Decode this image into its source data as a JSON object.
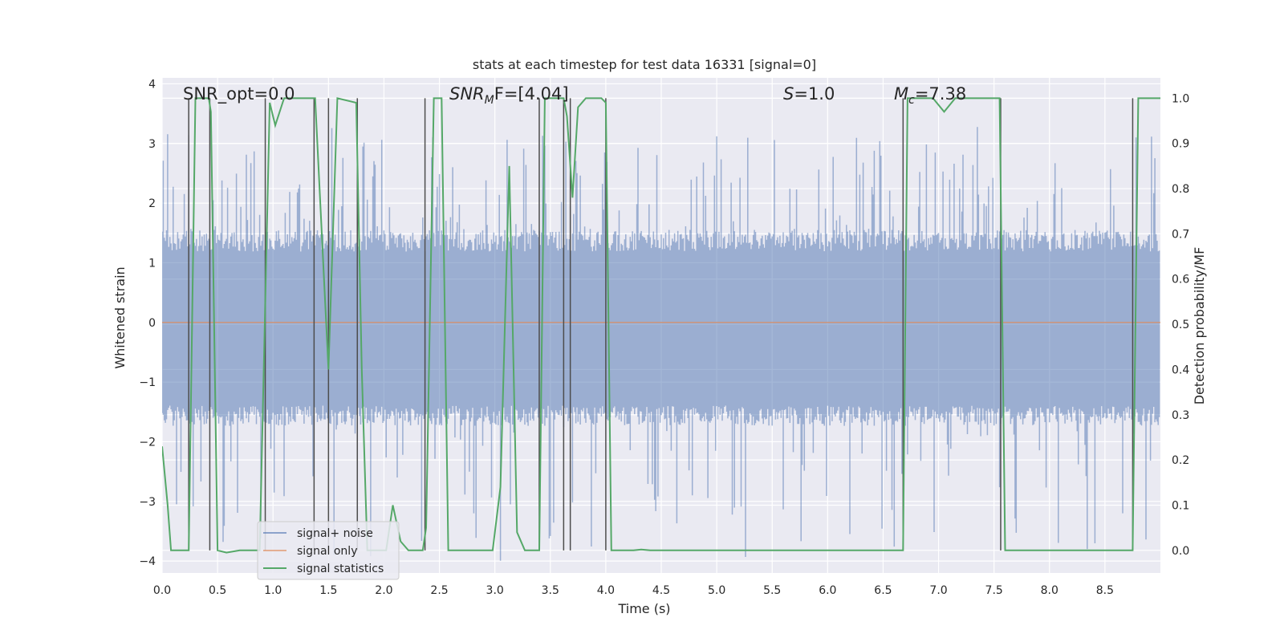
{
  "chart_data": {
    "type": "line",
    "title": "stats at each timestep for test data 16331 [signal=0]",
    "xlabel": "Time (s)",
    "ylabel": "Whitened strain",
    "ylabel_right": "Detection probability/MF",
    "xlim": [
      0,
      9
    ],
    "ylim": [
      -4.2,
      4.1
    ],
    "ylim_right": [
      -0.05,
      1.045
    ],
    "x_ticks": [
      "0.0",
      "0.5",
      "1.0",
      "1.5",
      "2.0",
      "2.5",
      "3.0",
      "3.5",
      "4.0",
      "4.5",
      "5.0",
      "5.5",
      "6.0",
      "6.5",
      "7.0",
      "7.5",
      "8.0",
      "8.5"
    ],
    "y_ticks": [
      "4",
      "3",
      "2",
      "1",
      "0",
      "−1",
      "−2",
      "−3",
      "−4"
    ],
    "y_right_ticks": [
      "1.0",
      "0.9",
      "0.8",
      "0.7",
      "0.6",
      "0.5",
      "0.4",
      "0.3",
      "0.2",
      "0.1",
      "0.0"
    ],
    "annotations": {
      "snr_opt": "SNR_opt=0.0",
      "snr_mf_prefix": "SNR",
      "snr_mf_sub": "M",
      "snr_mf_value": "F=[4.04]",
      "s_label": "S",
      "s_value": "=1.0",
      "mc_label": "M",
      "mc_sub": "c",
      "mc_value": "=7.38"
    },
    "legend": [
      "signal+ noise",
      "signal only",
      "signal statistics"
    ],
    "colors": {
      "noise": "#4c72b0",
      "signal": "#dd8452",
      "stats": "#55a868",
      "vlines": "#4d4d4d",
      "background": "#eaeaf2",
      "grid": "#ffffff"
    },
    "series": [
      {
        "name": "signal+ noise",
        "description_range": "dense noise fill, mostly within -1.7..1.5, spikes up to 3.3 and down to -4.0",
        "values_summary": {
          "typical_low": -1.7,
          "typical_high": 1.45,
          "max": 3.3,
          "min": -4.0
        }
      },
      {
        "name": "signal only",
        "values": [
          [
            0,
            0
          ],
          [
            9,
            0
          ]
        ]
      },
      {
        "name": "signal statistics",
        "points": [
          [
            0.0,
            0.23
          ],
          [
            0.05,
            0.1
          ],
          [
            0.08,
            0.0
          ],
          [
            0.24,
            0.0
          ],
          [
            0.3,
            1.0
          ],
          [
            0.42,
            1.0
          ],
          [
            0.44,
            0.97
          ],
          [
            0.5,
            0.0
          ],
          [
            0.58,
            -0.005
          ],
          [
            0.7,
            0.0
          ],
          [
            0.88,
            0.0
          ],
          [
            0.97,
            0.99
          ],
          [
            1.02,
            0.94
          ],
          [
            1.1,
            1.0
          ],
          [
            1.38,
            1.0
          ],
          [
            1.5,
            0.4
          ],
          [
            1.58,
            1.0
          ],
          [
            1.75,
            0.99
          ],
          [
            1.8,
            0.4
          ],
          [
            1.85,
            0.0
          ],
          [
            2.02,
            0.0
          ],
          [
            2.08,
            0.1
          ],
          [
            2.15,
            0.02
          ],
          [
            2.22,
            0.0
          ],
          [
            2.35,
            0.0
          ],
          [
            2.38,
            0.05
          ],
          [
            2.45,
            1.0
          ],
          [
            2.52,
            1.0
          ],
          [
            2.58,
            0.0
          ],
          [
            2.98,
            0.0
          ],
          [
            3.05,
            0.14
          ],
          [
            3.13,
            0.85
          ],
          [
            3.2,
            0.04
          ],
          [
            3.27,
            0.0
          ],
          [
            3.4,
            0.0
          ],
          [
            3.45,
            1.0
          ],
          [
            3.62,
            1.0
          ],
          [
            3.65,
            0.96
          ],
          [
            3.7,
            0.78
          ],
          [
            3.75,
            0.98
          ],
          [
            3.82,
            1.0
          ],
          [
            3.96,
            1.0
          ],
          [
            4.0,
            0.99
          ],
          [
            4.05,
            0.0
          ],
          [
            4.25,
            0.0
          ],
          [
            4.32,
            0.002
          ],
          [
            4.4,
            0.0
          ],
          [
            6.68,
            0.0
          ],
          [
            6.72,
            1.0
          ],
          [
            6.95,
            1.0
          ],
          [
            7.05,
            0.97
          ],
          [
            7.15,
            1.0
          ],
          [
            7.55,
            1.0
          ],
          [
            7.6,
            0.0
          ],
          [
            8.75,
            0.0
          ],
          [
            8.8,
            1.0
          ],
          [
            9.0,
            1.0
          ]
        ]
      }
    ],
    "vertical_lines_x": [
      0.24,
      0.43,
      0.93,
      1.37,
      1.5,
      1.76,
      2.37,
      3.4,
      3.62,
      3.68,
      4.0,
      6.68,
      7.56,
      8.75
    ]
  }
}
